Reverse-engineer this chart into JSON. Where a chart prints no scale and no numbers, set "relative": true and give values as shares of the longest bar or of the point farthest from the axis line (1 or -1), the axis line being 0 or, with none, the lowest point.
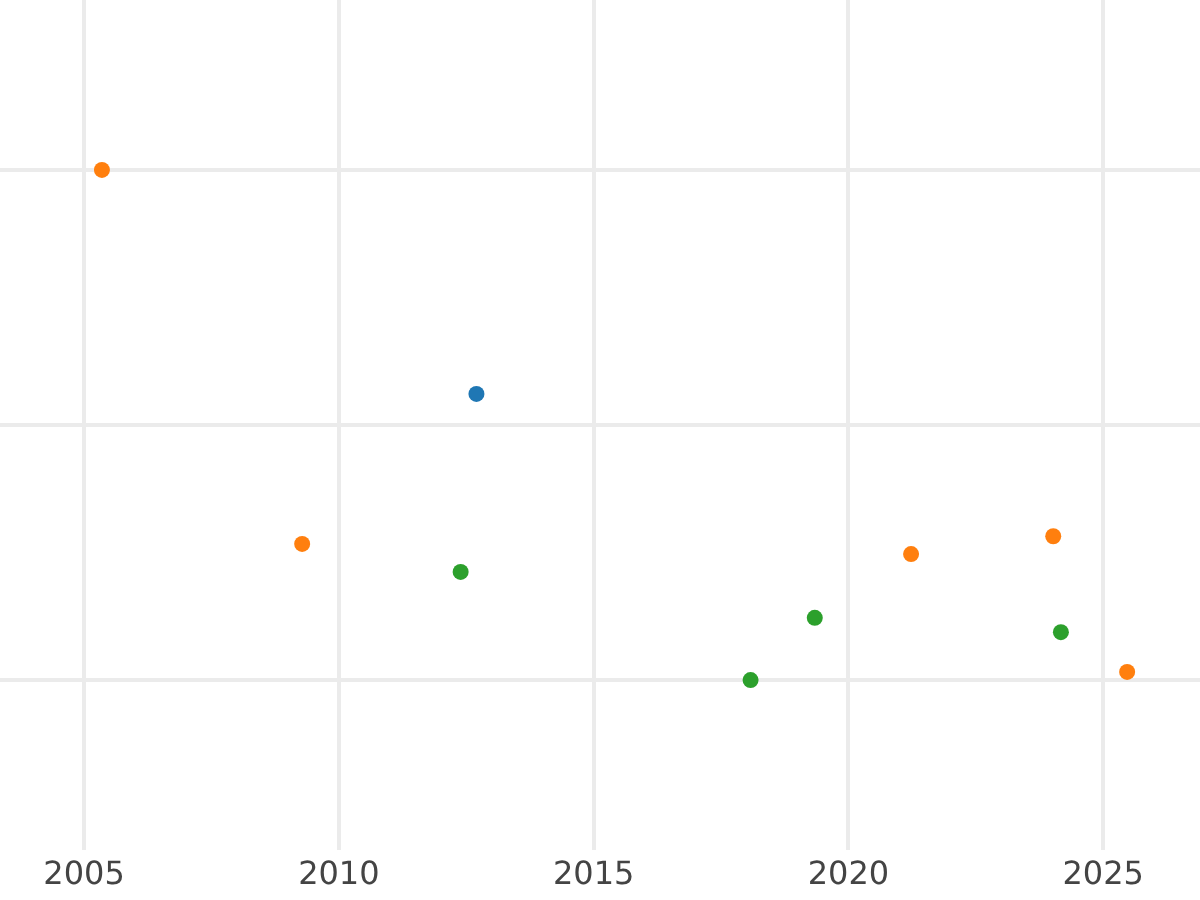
{
  "chart_data": {
    "type": "scatter",
    "relative": true,
    "grid": true,
    "marker": "circle",
    "xlim": [
      2003.35,
      2026.9
    ],
    "xticks": [
      2005,
      2010,
      2015,
      2020,
      2025
    ],
    "series": [
      {
        "color": "#ff7f0e",
        "x": [
          2005.35,
          2009.28,
          2021.23,
          2024.02,
          2025.47
        ],
        "values": [
          1,
          0.267,
          0.247,
          0.282,
          0.016
        ]
      },
      {
        "color": "#1f77b4",
        "x": [
          2012.7
        ],
        "values": [
          0.561
        ]
      },
      {
        "color": "#2ca02c",
        "x": [
          2012.39,
          2018.08,
          2019.34,
          2024.17
        ],
        "values": [
          0.212,
          0,
          0.122,
          0.094
        ]
      }
    ]
  }
}
